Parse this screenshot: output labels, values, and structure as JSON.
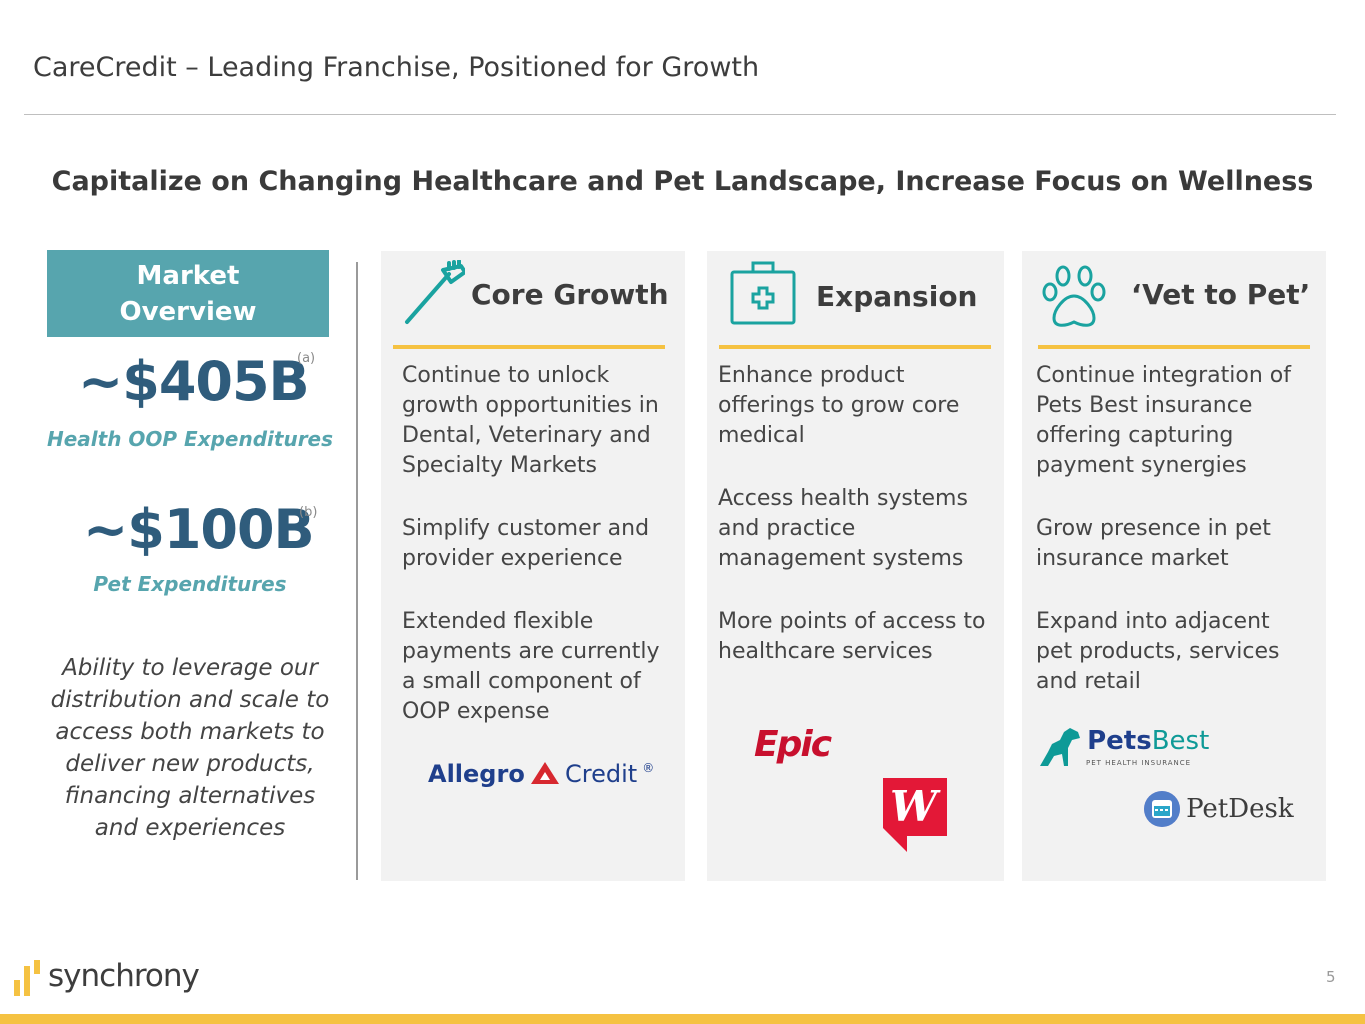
{
  "header": {
    "title": "CareCredit – Leading Franchise, Positioned for Growth",
    "subtitle": "Capitalize on Changing Healthcare and Pet Landscape, Increase Focus on Wellness"
  },
  "market_overview": {
    "heading_line1": "Market",
    "heading_line2": "Overview",
    "stats": [
      {
        "value": "~$405B",
        "footnote": "(a)",
        "label": "Health OOP Expenditures"
      },
      {
        "value": "~$100B",
        "footnote": "(b)",
        "label": "Pet Expenditures"
      }
    ],
    "leverage_text": "Ability to leverage our distribution and scale to access both markets to deliver new products, financing alternatives and experiences"
  },
  "columns": [
    {
      "title": "Core Growth",
      "icon": "toothbrush-icon",
      "bullets": [
        "Continue to unlock growth opportunities in Dental, Veterinary and Specialty Markets",
        "Simplify customer and provider experience",
        "Extended flexible payments are currently a small component of OOP expense"
      ],
      "logos": {
        "allegro": "Allegro",
        "allegro_credit": "Credit",
        "registered": "®"
      }
    },
    {
      "title": "Expansion",
      "icon": "medical-kit-icon",
      "bullets": [
        "Enhance product offerings to grow core medical",
        "Access health systems and practice management systems",
        "More points of access to healthcare services"
      ],
      "logos": {
        "epic": "Epic",
        "walgreens": "W"
      }
    },
    {
      "title": "‘Vet to Pet’",
      "icon": "paw-icon",
      "bullets": [
        "Continue integration of Pets Best insurance offering capturing payment synergies",
        "Grow presence in pet insurance market",
        "Expand into adjacent pet products, services and retail"
      ],
      "logos": {
        "petsbest_pets": "Pets",
        "petsbest_best": "Best",
        "petsbest_tag": "PET HEALTH INSURANCE",
        "petdesk": "PetDesk"
      }
    }
  ],
  "footer": {
    "brand": "synchrony",
    "page_number": "5"
  },
  "colors": {
    "teal": "#57a5ae",
    "navy": "#2f5c7c",
    "gold": "#f5c242",
    "panel": "#f2f2f2"
  }
}
